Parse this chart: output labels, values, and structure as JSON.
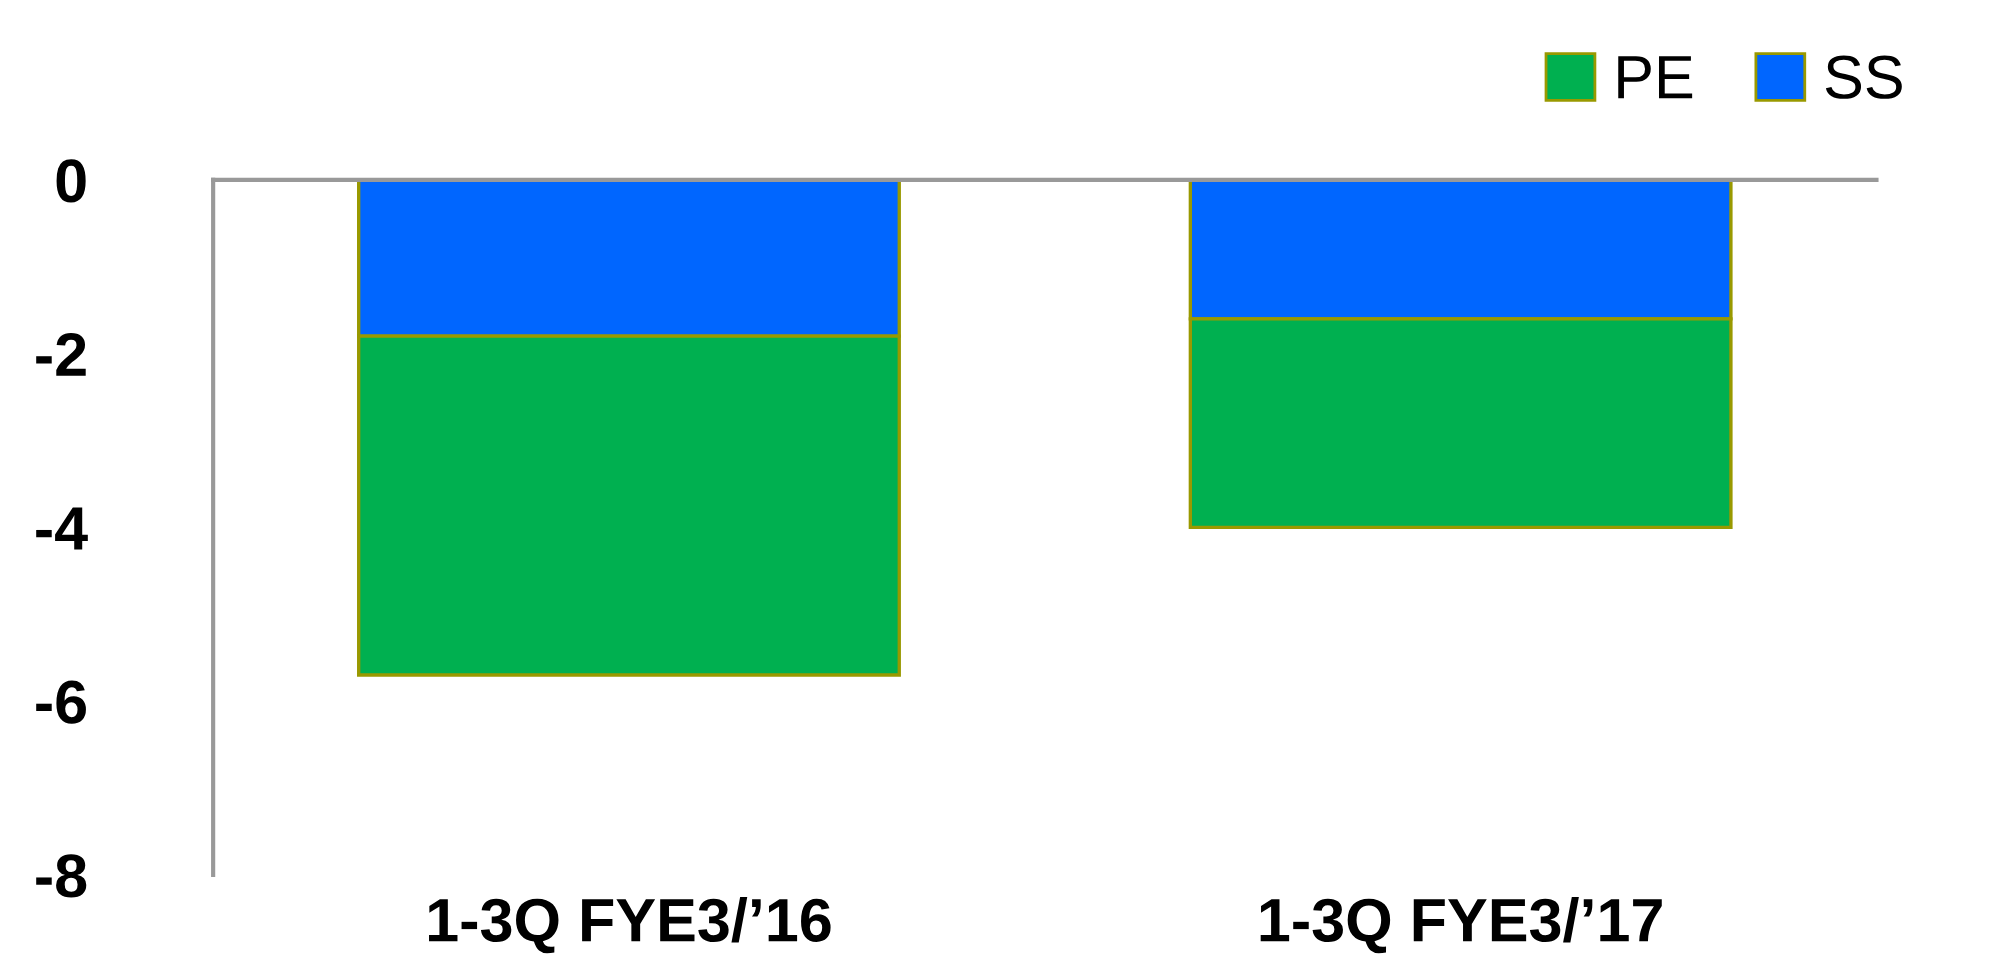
{
  "chart_data": {
    "type": "bar",
    "stacked": true,
    "categories": [
      "1-3Q FYE3/’16",
      "1-3Q FYE3/’17"
    ],
    "series": [
      {
        "name": "SS",
        "color": "#0066ff",
        "values": [
          -1.8,
          -1.6
        ]
      },
      {
        "name": "PE",
        "color": "#00b050",
        "values": [
          -3.9,
          -2.4
        ]
      }
    ],
    "ylim": [
      -8,
      0
    ],
    "yticks": [
      -8,
      -6,
      -4,
      -2,
      0
    ],
    "grid": false,
    "legend": "top right"
  }
}
